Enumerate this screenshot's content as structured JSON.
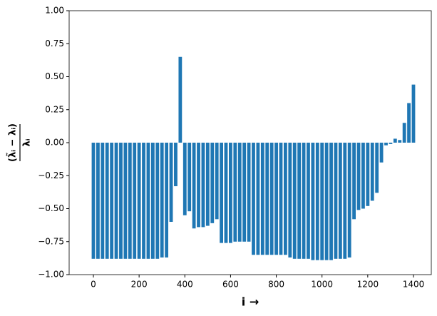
{
  "chart_data": {
    "type": "bar",
    "x_label": "i →",
    "y_label": {
      "numerator": "(λ̃ᵢ − λᵢ)",
      "denominator": "λᵢ"
    },
    "x": [
      0,
      20,
      40,
      60,
      80,
      100,
      120,
      140,
      160,
      180,
      200,
      220,
      240,
      260,
      280,
      300,
      320,
      340,
      360,
      380,
      400,
      420,
      440,
      460,
      480,
      500,
      520,
      540,
      560,
      580,
      600,
      620,
      640,
      660,
      680,
      700,
      720,
      740,
      760,
      780,
      800,
      820,
      840,
      860,
      880,
      900,
      920,
      940,
      960,
      980,
      1000,
      1020,
      1040,
      1060,
      1080,
      1100,
      1120,
      1140,
      1160,
      1180,
      1200,
      1220,
      1240,
      1260,
      1280,
      1300,
      1320,
      1340,
      1360,
      1380,
      1400
    ],
    "values": [
      -0.88,
      -0.88,
      -0.88,
      -0.88,
      -0.88,
      -0.88,
      -0.88,
      -0.88,
      -0.88,
      -0.88,
      -0.88,
      -0.88,
      -0.88,
      -0.88,
      -0.88,
      -0.87,
      -0.87,
      -0.6,
      -0.33,
      0.65,
      -0.55,
      -0.52,
      -0.65,
      -0.64,
      -0.64,
      -0.63,
      -0.61,
      -0.58,
      -0.76,
      -0.76,
      -0.76,
      -0.75,
      -0.75,
      -0.75,
      -0.75,
      -0.85,
      -0.85,
      -0.85,
      -0.85,
      -0.85,
      -0.85,
      -0.85,
      -0.85,
      -0.87,
      -0.88,
      -0.88,
      -0.88,
      -0.88,
      -0.89,
      -0.89,
      -0.89,
      -0.89,
      -0.89,
      -0.88,
      -0.88,
      -0.88,
      -0.87,
      -0.58,
      -0.51,
      -0.5,
      -0.48,
      -0.44,
      -0.38,
      -0.15,
      -0.02,
      -0.01,
      0.03,
      0.02,
      0.15,
      0.3,
      0.44
    ],
    "color": "#1f77b4",
    "xlim": [
      -106,
      1478
    ],
    "ylim": [
      -1,
      1
    ],
    "xticks": [
      0,
      200,
      400,
      600,
      800,
      1000,
      1200,
      1400
    ],
    "yticks": [
      {
        "value": -1,
        "label": "−1.00"
      },
      {
        "value": -0.75,
        "label": "−0.75"
      },
      {
        "value": -0.5,
        "label": "−0.50"
      },
      {
        "value": -0.25,
        "label": "−0.25"
      },
      {
        "value": 0,
        "label": "0.00"
      },
      {
        "value": 0.25,
        "label": "0.25"
      },
      {
        "value": 0.5,
        "label": "0.50"
      },
      {
        "value": 0.75,
        "label": "0.75"
      },
      {
        "value": 1,
        "label": "1.00"
      }
    ]
  }
}
